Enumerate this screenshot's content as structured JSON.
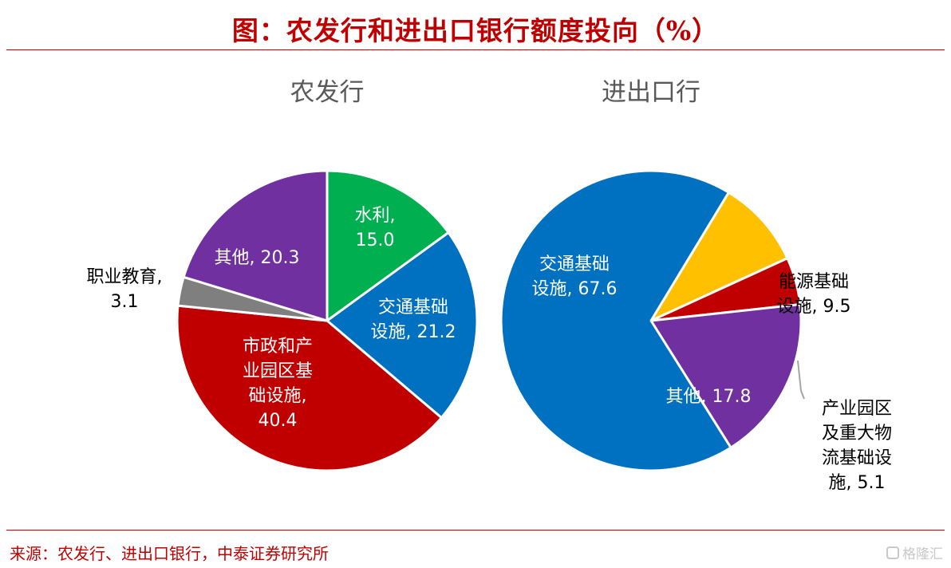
{
  "title": "图：农发行和进出口银行额度投向（%）",
  "source": "来源：农发行、进出口银行，中泰证券研究所",
  "watermark": "格隆汇",
  "colors": {
    "accent": "#c00000",
    "green": "#00b050",
    "blue": "#0070c0",
    "red": "#c00000",
    "gray": "#7f7f7f",
    "purple": "#7030a0",
    "yellow": "#ffc000"
  },
  "chart_data": [
    {
      "type": "pie",
      "title": "农发行",
      "slices": [
        {
          "label": "水利",
          "value": 15.0,
          "color": "#00b050"
        },
        {
          "label": "交通基础设施",
          "value": 21.2,
          "color": "#0070c0"
        },
        {
          "label": "市政和产业园区基础设施",
          "value": 40.4,
          "color": "#c00000"
        },
        {
          "label": "职业教育",
          "value": 3.1,
          "color": "#7f7f7f"
        },
        {
          "label": "其他",
          "value": 20.3,
          "color": "#7030a0"
        }
      ],
      "data_labels": [
        {
          "lines": [
            "水利,",
            "15.0"
          ]
        },
        {
          "lines": [
            "交通基础",
            "设施, 21.2"
          ]
        },
        {
          "lines": [
            "市政和产",
            "业园区基",
            "础设施,",
            "40.4"
          ]
        },
        {
          "lines": [
            "职业教育,",
            "3.1"
          ]
        },
        {
          "lines": [
            "其他, 20.3"
          ]
        }
      ]
    },
    {
      "type": "pie",
      "title": "进出口行",
      "slices": [
        {
          "label": "能源基础设施",
          "value": 9.5,
          "color": "#ffc000"
        },
        {
          "label": "产业园区及重大物流基础设施",
          "value": 5.1,
          "color": "#c00000"
        },
        {
          "label": "其他",
          "value": 17.8,
          "color": "#7030a0"
        },
        {
          "label": "交通基础设施",
          "value": 67.6,
          "color": "#0070c0"
        }
      ],
      "data_labels": [
        {
          "lines": [
            "能源基础",
            "设施, 9.5"
          ]
        },
        {
          "lines": [
            "产业园区",
            "及重大物",
            "流基础设",
            "施, 5.1"
          ]
        },
        {
          "lines": [
            "其他, 17.8"
          ]
        },
        {
          "lines": [
            "交通基础",
            "设施, 67.6"
          ]
        }
      ]
    }
  ]
}
